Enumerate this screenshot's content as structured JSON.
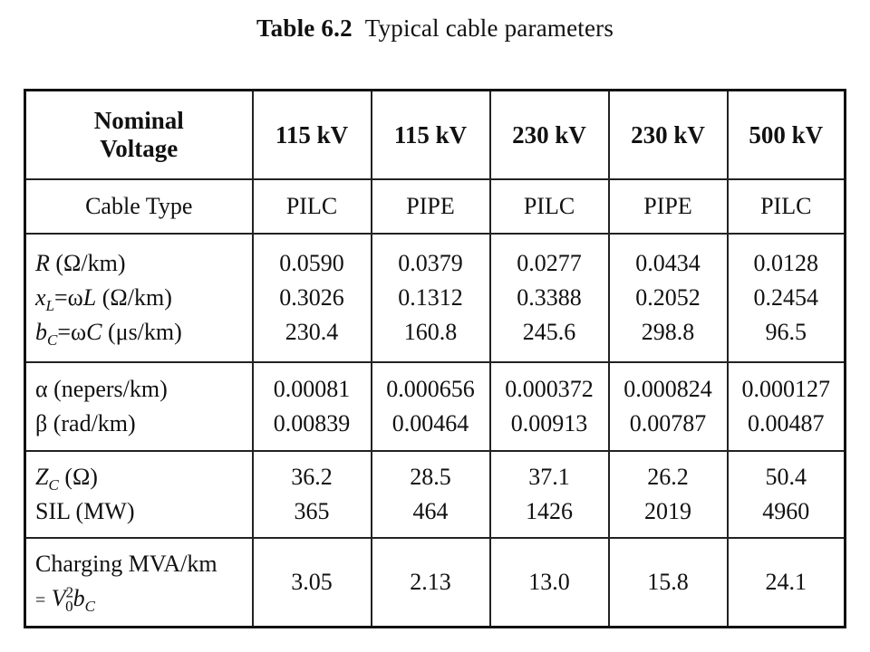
{
  "caption": {
    "number": "Table 6.2",
    "title": "Typical cable parameters"
  },
  "table": {
    "header": {
      "label_line1": "Nominal",
      "label_line2": "Voltage",
      "columns": [
        "115 kV",
        "115 kV",
        "230 kV",
        "230 kV",
        "500 kV"
      ]
    },
    "cable_type": {
      "label": "Cable Type",
      "values": [
        "PILC",
        "PIPE",
        "PILC",
        "PIPE",
        "PILC"
      ]
    },
    "R": {
      "symbol": "R",
      "unit": "(Ω/km)",
      "values": [
        "0.0590",
        "0.0379",
        "0.0277",
        "0.0434",
        "0.0128"
      ]
    },
    "xL": {
      "symbol": "x",
      "sub": "L",
      "expr": "=ω",
      "expr_var": "L",
      "unit": "(Ω/km)",
      "values": [
        "0.3026",
        "0.1312",
        "0.3388",
        "0.2052",
        "0.2454"
      ]
    },
    "bC": {
      "symbol": "b",
      "sub": "C",
      "expr": "=ω",
      "expr_var": "C",
      "unit": "(μs/km)",
      "values": [
        "230.4",
        "160.8",
        "245.6",
        "298.8",
        "96.5"
      ]
    },
    "alpha": {
      "label": "α (nepers/km)",
      "values": [
        "0.00081",
        "0.000656",
        "0.000372",
        "0.000824",
        "0.000127"
      ]
    },
    "beta": {
      "label": "β (rad/km)",
      "values": [
        "0.00839",
        "0.00464",
        "0.00913",
        "0.00787",
        "0.00487"
      ]
    },
    "Zc": {
      "symbol": "Z",
      "sub": "C",
      "unit": "(Ω)",
      "values": [
        "36.2",
        "28.5",
        "37.1",
        "26.2",
        "50.4"
      ]
    },
    "SIL": {
      "label": "SIL (MW)",
      "values": [
        "365",
        "464",
        "1426",
        "2019",
        "4960"
      ]
    },
    "charging": {
      "label_line1": "Charging MVA/km",
      "eq": "=",
      "v": "V",
      "v_sup": "2",
      "v_sub": "0",
      "b": "b",
      "b_sub": "C",
      "values": [
        "3.05",
        "2.13",
        "13.0",
        "15.8",
        "24.1"
      ]
    }
  }
}
